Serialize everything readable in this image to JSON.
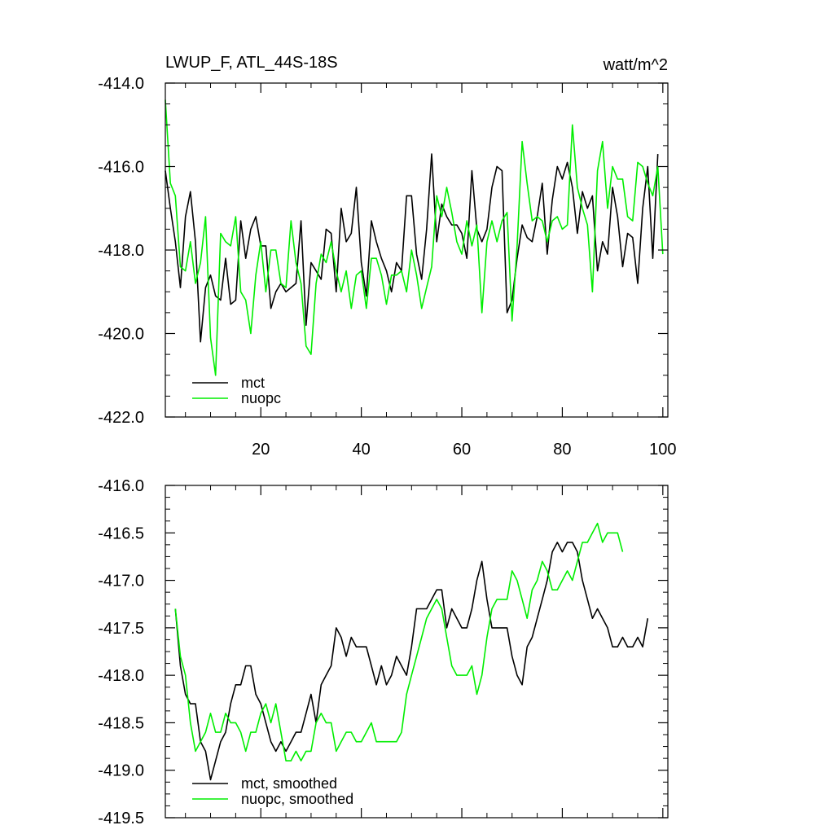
{
  "chart_data": [
    {
      "type": "line",
      "title": "LWUP_F, ATL_44S-18S",
      "units": "watt/m^2",
      "xlim": [
        1,
        101
      ],
      "ylim": [
        -422,
        -414
      ],
      "x_ticks": [
        20,
        40,
        60,
        80,
        100
      ],
      "y_ticks": [
        -414.0,
        -416.0,
        -418.0,
        -420.0,
        -422.0
      ],
      "y_tick_labels": [
        "-414.0",
        "-416.0",
        "-418.0",
        "-420.0",
        "-422.0"
      ],
      "x_tick_labels": [
        "20",
        "40",
        "60",
        "80",
        "100"
      ],
      "legend_position": "bottom-left",
      "series": [
        {
          "name": "mct",
          "color": "#000000",
          "x_start": 1,
          "values": [
            -416.1,
            -417.0,
            -417.8,
            -418.9,
            -417.2,
            -416.6,
            -417.8,
            -420.2,
            -418.9,
            -418.6,
            -419.1,
            -419.2,
            -418.2,
            -419.3,
            -419.2,
            -417.3,
            -418.2,
            -417.5,
            -417.2,
            -417.9,
            -417.9,
            -419.4,
            -419.0,
            -418.8,
            -419.0,
            -418.9,
            -418.8,
            -417.3,
            -419.8,
            -418.3,
            -418.5,
            -418.7,
            -417.5,
            -417.6,
            -419.0,
            -417.0,
            -417.8,
            -417.6,
            -416.5,
            -418.3,
            -419.1,
            -417.3,
            -417.8,
            -418.2,
            -418.5,
            -419.0,
            -418.3,
            -418.5,
            -416.7,
            -416.7,
            -418.1,
            -418.7,
            -417.5,
            -415.7,
            -417.8,
            -416.9,
            -417.2,
            -417.4,
            -417.4,
            -417.6,
            -418.2,
            -416.1,
            -417.5,
            -417.8,
            -417.5,
            -416.5,
            -416.0,
            -416.1,
            -419.5,
            -419.2,
            -418.2,
            -417.4,
            -417.7,
            -417.8,
            -417.2,
            -416.4,
            -418.1,
            -416.8,
            -416.0,
            -416.3,
            -415.9,
            -416.5,
            -417.6,
            -416.6,
            -417.0,
            -416.7,
            -418.5,
            -417.8,
            -418.1,
            -416.5,
            -417.2,
            -418.4,
            -417.6,
            -417.7,
            -418.8,
            -417.0,
            -416.0,
            -418.2,
            -415.7
          ]
        },
        {
          "name": "nuopc",
          "color": "#00ee00",
          "x_start": 1,
          "values": [
            -414.4,
            -416.4,
            -416.7,
            -418.4,
            -418.5,
            -417.8,
            -418.8,
            -418.3,
            -417.2,
            -420.1,
            -421.0,
            -417.6,
            -417.8,
            -417.9,
            -417.2,
            -419.0,
            -419.2,
            -420.0,
            -418.6,
            -417.8,
            -419.0,
            -418.0,
            -418.0,
            -418.8,
            -418.9,
            -417.3,
            -418.3,
            -418.8,
            -420.3,
            -420.5,
            -418.8,
            -418.1,
            -418.3,
            -417.8,
            -418.5,
            -419.0,
            -418.5,
            -419.4,
            -418.6,
            -418.5,
            -419.4,
            -418.2,
            -418.2,
            -418.6,
            -419.3,
            -418.6,
            -418.6,
            -418.5,
            -419.0,
            -418.0,
            -418.6,
            -419.4,
            -418.9,
            -418.4,
            -416.7,
            -417.2,
            -416.5,
            -417.1,
            -417.8,
            -418.1,
            -417.3,
            -417.9,
            -417.4,
            -419.5,
            -417.8,
            -417.3,
            -417.8,
            -417.3,
            -417.1,
            -419.7,
            -417.9,
            -415.4,
            -416.4,
            -417.3,
            -417.2,
            -417.3,
            -417.8,
            -417.3,
            -417.2,
            -417.5,
            -417.4,
            -415.0,
            -416.5,
            -417.0,
            -417.4,
            -419.0,
            -416.1,
            -415.4,
            -417.0,
            -416.0,
            -416.3,
            -416.3,
            -417.2,
            -417.3,
            -415.9,
            -416.0,
            -416.4,
            -416.7,
            -416.0,
            -418.1
          ]
        }
      ]
    },
    {
      "type": "line",
      "title": "",
      "xlim": [
        1,
        101
      ],
      "ylim": [
        -419.5,
        -416.0
      ],
      "y_ticks": [
        -416.0,
        -416.5,
        -417.0,
        -417.5,
        -418.0,
        -418.5,
        -419.0,
        -419.5
      ],
      "y_tick_labels": [
        "-416.0",
        "-416.5",
        "-417.0",
        "-417.5",
        "-418.0",
        "-418.5",
        "-419.0",
        "-419.5"
      ],
      "legend_position": "bottom-left",
      "series": [
        {
          "name": "mct, smoothed",
          "color": "#000000",
          "x_start": 3,
          "values": [
            -417.3,
            -417.9,
            -418.2,
            -418.3,
            -418.3,
            -418.7,
            -418.8,
            -419.1,
            -418.9,
            -418.7,
            -418.6,
            -418.3,
            -418.1,
            -418.1,
            -417.9,
            -417.9,
            -418.2,
            -418.3,
            -418.5,
            -418.7,
            -418.8,
            -418.7,
            -418.8,
            -418.7,
            -418.6,
            -418.6,
            -418.4,
            -418.2,
            -418.5,
            -418.1,
            -418.0,
            -417.9,
            -417.5,
            -417.6,
            -417.8,
            -417.6,
            -417.7,
            -417.7,
            -417.7,
            -417.9,
            -418.1,
            -417.9,
            -418.1,
            -418.0,
            -417.8,
            -417.9,
            -418.0,
            -417.7,
            -417.3,
            -417.3,
            -417.3,
            -417.2,
            -417.1,
            -417.1,
            -417.5,
            -417.3,
            -417.4,
            -417.5,
            -417.5,
            -417.3,
            -417.0,
            -416.8,
            -417.2,
            -417.5,
            -417.5,
            -417.5,
            -417.5,
            -417.8,
            -418.0,
            -418.1,
            -417.7,
            -417.6,
            -417.4,
            -417.2,
            -417.0,
            -416.7,
            -416.6,
            -416.7,
            -416.6,
            -416.6,
            -416.7,
            -417.0,
            -417.2,
            -417.4,
            -417.3,
            -417.4,
            -417.5,
            -417.7,
            -417.7,
            -417.6,
            -417.7,
            -417.7,
            -417.6,
            -417.7,
            -417.4
          ]
        },
        {
          "name": "nuopc, smoothed",
          "color": "#00ee00",
          "x_start": 3,
          "values": [
            -417.3,
            -417.8,
            -418.0,
            -418.5,
            -418.8,
            -418.7,
            -418.6,
            -418.4,
            -418.6,
            -418.6,
            -418.4,
            -418.5,
            -418.5,
            -418.6,
            -418.8,
            -418.6,
            -418.6,
            -418.4,
            -418.3,
            -418.5,
            -418.3,
            -418.6,
            -418.9,
            -418.9,
            -418.8,
            -418.9,
            -418.8,
            -418.8,
            -418.5,
            -418.4,
            -418.5,
            -418.5,
            -418.8,
            -418.7,
            -418.6,
            -418.6,
            -418.7,
            -418.7,
            -418.6,
            -418.5,
            -418.7,
            -418.7,
            -418.7,
            -418.7,
            -418.7,
            -418.6,
            -418.2,
            -418.0,
            -417.8,
            -417.6,
            -417.4,
            -417.3,
            -417.2,
            -417.3,
            -417.6,
            -417.9,
            -418.0,
            -418.0,
            -418.0,
            -417.9,
            -418.2,
            -418.0,
            -417.6,
            -417.3,
            -417.2,
            -417.2,
            -417.2,
            -416.9,
            -417.0,
            -417.2,
            -417.4,
            -417.1,
            -417.0,
            -416.8,
            -416.9,
            -417.1,
            -417.1,
            -417.0,
            -416.9,
            -417.0,
            -416.8,
            -416.6,
            -416.6,
            -416.5,
            -416.4,
            -416.6,
            -416.5,
            -416.5,
            -416.5,
            -416.7
          ]
        }
      ]
    }
  ]
}
